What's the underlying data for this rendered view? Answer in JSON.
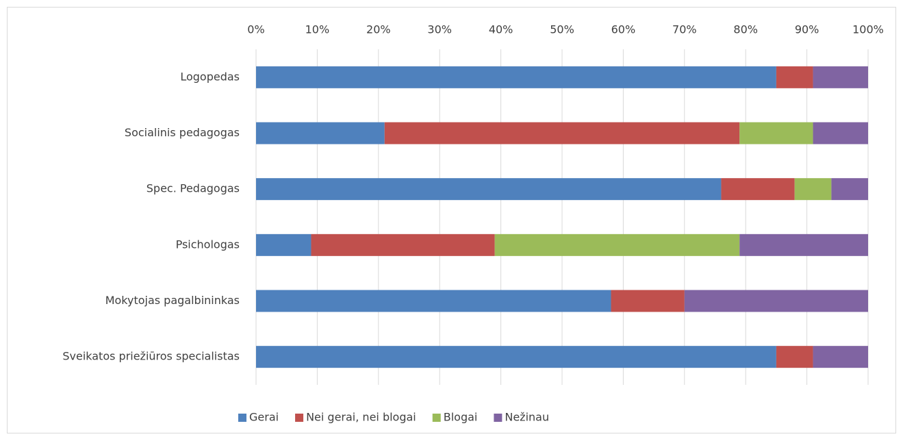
{
  "chart_data": {
    "type": "stacked_barh",
    "categories": [
      "Logopedas",
      "Socialinis pedagogas",
      "Spec. Pedagogas",
      "Psichologas",
      "Mokytojas pagalbininkas",
      "Sveikatos priežiūros specialistas"
    ],
    "series": [
      {
        "name": "Gerai",
        "color": "#4f81bd",
        "values": [
          85,
          21,
          76,
          9,
          58,
          85
        ]
      },
      {
        "name": "Nei gerai, nei blogai",
        "color": "#c0504d",
        "values": [
          6,
          58,
          12,
          30,
          12,
          6
        ]
      },
      {
        "name": "Blogai",
        "color": "#9bbb59",
        "values": [
          0,
          12,
          6,
          40,
          0,
          0
        ]
      },
      {
        "name": "Nežinau",
        "color": "#8064a2",
        "values": [
          9,
          9,
          6,
          21,
          30,
          9
        ]
      }
    ],
    "xlim": [
      0,
      100
    ],
    "xticks": [
      {
        "value": 0,
        "label": "0%"
      },
      {
        "value": 10,
        "label": "10%"
      },
      {
        "value": 20,
        "label": "20%"
      },
      {
        "value": 30,
        "label": "30%"
      },
      {
        "value": 40,
        "label": "40%"
      },
      {
        "value": 50,
        "label": "50%"
      },
      {
        "value": 60,
        "label": "60%"
      },
      {
        "value": 70,
        "label": "70%"
      },
      {
        "value": 80,
        "label": "80%"
      },
      {
        "value": 90,
        "label": "90%"
      },
      {
        "value": 100,
        "label": "100%"
      }
    ],
    "grid": true,
    "legend": "bottom"
  }
}
